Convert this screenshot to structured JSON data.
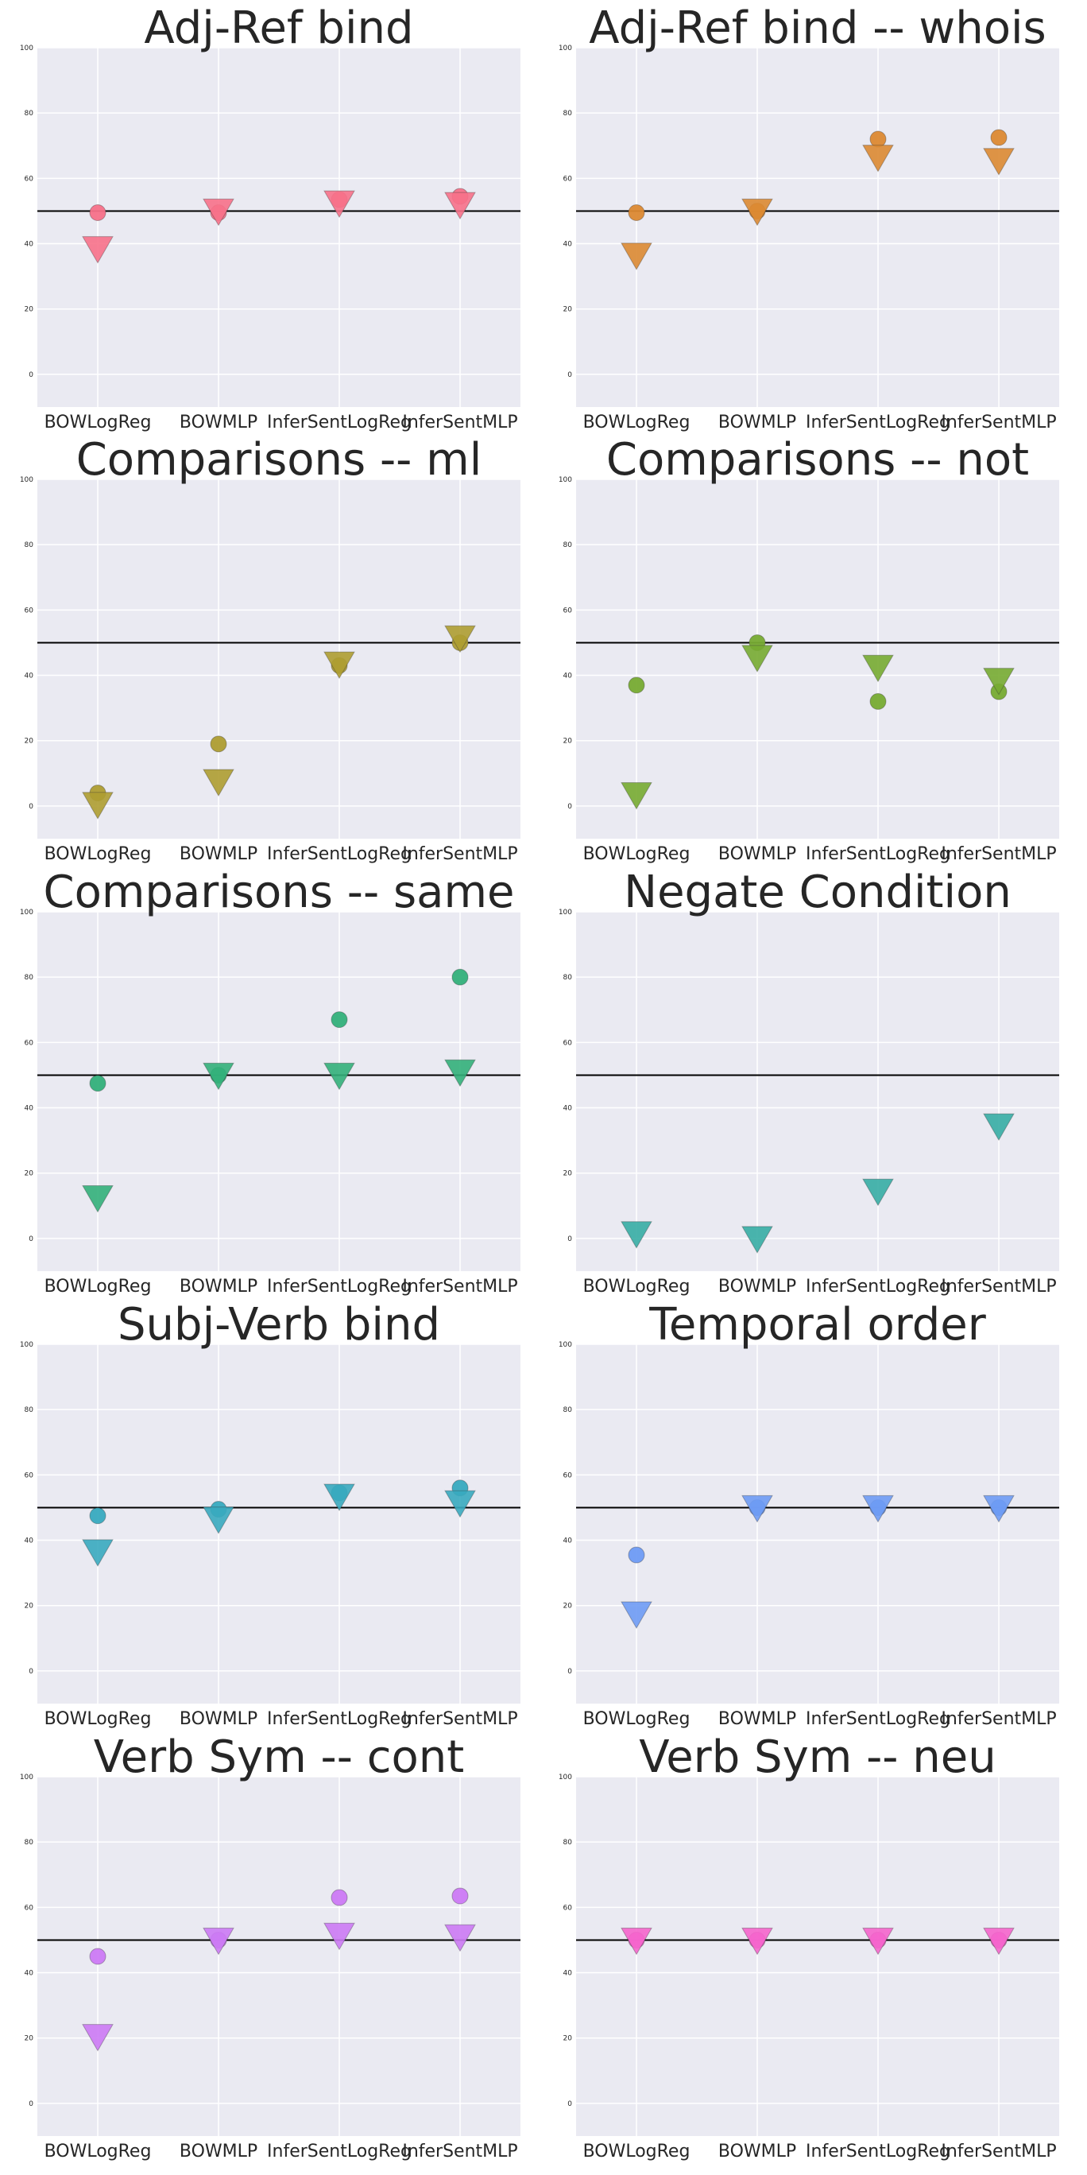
{
  "chart_data": [
    {
      "type": "scatter",
      "title": "Adj-Ref bind",
      "color": "#f77189",
      "categories": [
        "BOWLogReg",
        "BOWMLP",
        "InferSentLogReg",
        "InferSentMLP"
      ],
      "series": [
        {
          "marker": "circle",
          "values": [
            49.5,
            49.5,
            53.5,
            54.5
          ]
        },
        {
          "marker": "triangle-down",
          "values": [
            39,
            50.5,
            53,
            52.5
          ]
        }
      ],
      "ylim": [
        -10,
        100
      ],
      "yticks": [
        0,
        20,
        40,
        60,
        80,
        100
      ],
      "hline": 50,
      "grid": true
    },
    {
      "type": "scatter",
      "title": "Adj-Ref bind -- whois",
      "color": "#dc8932",
      "categories": [
        "BOWLogReg",
        "BOWMLP",
        "InferSentLogReg",
        "InferSentMLP"
      ],
      "series": [
        {
          "marker": "circle",
          "values": [
            49.5,
            50,
            72,
            72.5
          ]
        },
        {
          "marker": "triangle-down",
          "values": [
            37,
            50.5,
            67,
            66
          ]
        }
      ],
      "ylim": [
        -10,
        100
      ],
      "yticks": [
        0,
        20,
        40,
        60,
        80,
        100
      ],
      "hline": 50,
      "grid": true
    },
    {
      "type": "scatter",
      "title": "Comparisons -- ml",
      "color": "#ae9d31",
      "categories": [
        "BOWLogReg",
        "BOWMLP",
        "InferSentLogReg",
        "InferSentMLP"
      ],
      "series": [
        {
          "marker": "circle",
          "values": [
            4,
            19,
            43,
            50
          ]
        },
        {
          "marker": "triangle-down",
          "values": [
            1,
            8,
            44,
            52
          ]
        }
      ],
      "ylim": [
        -10,
        100
      ],
      "yticks": [
        0,
        20,
        40,
        60,
        80,
        100
      ],
      "hline": 50,
      "grid": true
    },
    {
      "type": "scatter",
      "title": "Comparisons -- not",
      "color": "#77ab31",
      "categories": [
        "BOWLogReg",
        "BOWMLP",
        "InferSentLogReg",
        "InferSentMLP"
      ],
      "series": [
        {
          "marker": "circle",
          "values": [
            37,
            50,
            32,
            35
          ]
        },
        {
          "marker": "triangle-down",
          "values": [
            4,
            46,
            43,
            39
          ]
        }
      ],
      "ylim": [
        -10,
        100
      ],
      "yticks": [
        0,
        20,
        40,
        60,
        80,
        100
      ],
      "hline": 50,
      "grid": true
    },
    {
      "type": "scatter",
      "title": "Comparisons -- same",
      "color": "#33b07a",
      "categories": [
        "BOWLogReg",
        "BOWMLP",
        "InferSentLogReg",
        "InferSentMLP"
      ],
      "series": [
        {
          "marker": "circle",
          "values": [
            47.5,
            50,
            67,
            80
          ]
        },
        {
          "marker": "triangle-down",
          "values": [
            13,
            50.5,
            50.5,
            51.5
          ]
        }
      ],
      "ylim": [
        -10,
        100
      ],
      "yticks": [
        0,
        20,
        40,
        60,
        80,
        100
      ],
      "hline": 50,
      "grid": true
    },
    {
      "type": "scatter",
      "title": "Negate Condition",
      "color": "#36ada4",
      "categories": [
        "BOWLogReg",
        "BOWMLP",
        "InferSentLogReg",
        "InferSentMLP"
      ],
      "series": [
        {
          "marker": "circle",
          "values": [
            null,
            null,
            null,
            null
          ]
        },
        {
          "marker": "triangle-down",
          "values": [
            2,
            0.5,
            15,
            35
          ]
        }
      ],
      "ylim": [
        -10,
        100
      ],
      "yticks": [
        0,
        20,
        40,
        60,
        80,
        100
      ],
      "hline": 50,
      "grid": true
    },
    {
      "type": "scatter",
      "title": "Subj-Verb bind",
      "color": "#38aabf",
      "categories": [
        "BOWLogReg",
        "BOWMLP",
        "InferSentLogReg",
        "InferSentMLP"
      ],
      "series": [
        {
          "marker": "circle",
          "values": [
            47.5,
            49.5,
            54.5,
            56
          ]
        },
        {
          "marker": "triangle-down",
          "values": [
            37,
            47,
            54,
            52
          ]
        }
      ],
      "ylim": [
        -10,
        100
      ],
      "yticks": [
        0,
        20,
        40,
        60,
        80,
        100
      ],
      "hline": 50,
      "grid": true
    },
    {
      "type": "scatter",
      "title": "Temporal order",
      "color": "#6e9bf4",
      "categories": [
        "BOWLogReg",
        "BOWMLP",
        "InferSentLogReg",
        "InferSentMLP"
      ],
      "series": [
        {
          "marker": "circle",
          "values": [
            35.5,
            50,
            50,
            50
          ]
        },
        {
          "marker": "triangle-down",
          "values": [
            18,
            50.5,
            50.5,
            50.5
          ]
        }
      ],
      "ylim": [
        -10,
        100
      ],
      "yticks": [
        0,
        20,
        40,
        60,
        80,
        100
      ],
      "hline": 50,
      "grid": true
    },
    {
      "type": "scatter",
      "title": "Verb Sym -- cont",
      "color": "#cc7af4",
      "categories": [
        "BOWLogReg",
        "BOWMLP",
        "InferSentLogReg",
        "InferSentMLP"
      ],
      "series": [
        {
          "marker": "circle",
          "values": [
            45,
            50,
            63,
            63.5
          ]
        },
        {
          "marker": "triangle-down",
          "values": [
            21,
            50.5,
            52,
            51.5
          ]
        }
      ],
      "ylim": [
        -10,
        100
      ],
      "yticks": [
        0,
        20,
        40,
        60,
        80,
        100
      ],
      "hline": 50,
      "grid": true
    },
    {
      "type": "scatter",
      "title": "Verb Sym -- neu",
      "color": "#f565cc",
      "categories": [
        "BOWLogReg",
        "BOWMLP",
        "InferSentLogReg",
        "InferSentMLP"
      ],
      "series": [
        {
          "marker": "circle",
          "values": [
            50,
            50,
            50,
            50
          ]
        },
        {
          "marker": "triangle-down",
          "values": [
            50.5,
            50.5,
            50.5,
            50.5
          ]
        }
      ],
      "ylim": [
        -10,
        100
      ],
      "yticks": [
        0,
        20,
        40,
        60,
        80,
        100
      ],
      "hline": 50,
      "grid": true
    }
  ]
}
